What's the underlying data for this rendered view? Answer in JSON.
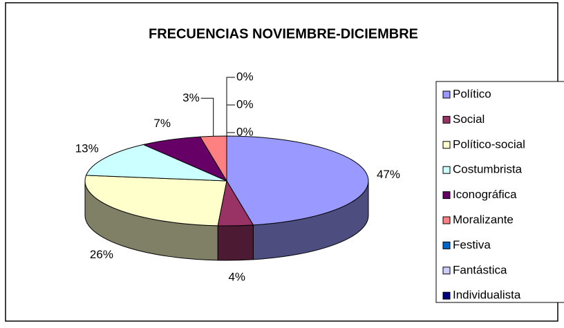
{
  "chart_data": {
    "type": "pie",
    "title": "FRECUENCIAS NOVIEMBRE-DICIEMBRE",
    "categories": [
      "Político",
      "Social",
      "Político-social",
      "Costumbrista",
      "Iconográfica",
      "Moralizante",
      "Festiva",
      "Fantástica",
      "Individualista"
    ],
    "values": [
      47,
      4,
      26,
      13,
      7,
      3,
      0,
      0,
      0
    ],
    "value_labels": [
      "47%",
      "4%",
      "26%",
      "13%",
      "7%",
      "3%",
      "0%",
      "0%",
      "0%"
    ],
    "colors": [
      "#9999ff",
      "#993366",
      "#ffffcc",
      "#ccffff",
      "#660066",
      "#ff8080",
      "#0066cc",
      "#ccccff",
      "#000080"
    ],
    "legend": "right"
  }
}
